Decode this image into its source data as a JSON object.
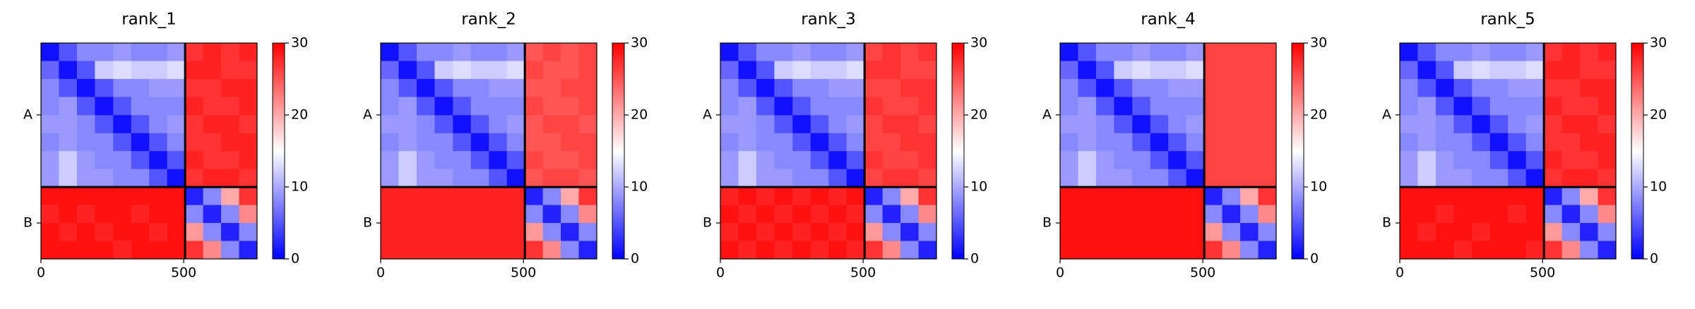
{
  "chart_data": [
    {
      "type": "heatmap",
      "title": "rank_1",
      "x_edges": [
        0,
        63,
        126,
        189,
        253,
        316,
        379,
        442,
        505,
        568,
        631,
        694,
        757
      ],
      "y_edges": [
        0,
        63,
        126,
        189,
        253,
        316,
        379,
        442,
        505,
        568,
        631,
        694,
        757
      ],
      "xlim": [
        0,
        757
      ],
      "ylim": [
        757,
        0
      ],
      "xticks": [
        0,
        500
      ],
      "yticks": [
        {
          "value": 252,
          "label": "A"
        },
        {
          "value": 631,
          "label": "B"
        }
      ],
      "chain_breaks": [
        505
      ],
      "clim": [
        0,
        30
      ],
      "cticks": [
        0,
        10,
        20,
        30
      ],
      "colormap": [
        "#0000ff",
        "#ffffff",
        "#ff0000"
      ],
      "z": [
        [
          1,
          5,
          8,
          8,
          9,
          8,
          8,
          9,
          27,
          28,
          27,
          28
        ],
        [
          6,
          1,
          5,
          12,
          13,
          12,
          12,
          13,
          28,
          28,
          27,
          27
        ],
        [
          8,
          5,
          1,
          5,
          8,
          8,
          9,
          9,
          27,
          27,
          28,
          28
        ],
        [
          8,
          9,
          5,
          1,
          5,
          8,
          8,
          8,
          28,
          27,
          27,
          28
        ],
        [
          9,
          9,
          8,
          5,
          1,
          5,
          8,
          9,
          27,
          28,
          28,
          27
        ],
        [
          8,
          9,
          8,
          8,
          5,
          1,
          5,
          8,
          27,
          27,
          28,
          28
        ],
        [
          9,
          12,
          9,
          8,
          8,
          5,
          1,
          5,
          28,
          27,
          27,
          28
        ],
        [
          9,
          12,
          9,
          9,
          8,
          8,
          5,
          1,
          27,
          28,
          28,
          27
        ],
        [
          29,
          29,
          29,
          29,
          29,
          29,
          29,
          29,
          2,
          8,
          20,
          27
        ],
        [
          28,
          29,
          28,
          29,
          29,
          28,
          29,
          29,
          8,
          2,
          8,
          22
        ],
        [
          29,
          28,
          29,
          28,
          29,
          29,
          28,
          29,
          21,
          8,
          2,
          8
        ],
        [
          29,
          29,
          29,
          29,
          28,
          29,
          29,
          29,
          27,
          22,
          8,
          2
        ]
      ]
    },
    {
      "type": "heatmap",
      "title": "rank_2",
      "x_edges": [
        0,
        63,
        126,
        189,
        253,
        316,
        379,
        442,
        505,
        568,
        631,
        694,
        757
      ],
      "y_edges": [
        0,
        63,
        126,
        189,
        253,
        316,
        379,
        442,
        505,
        568,
        631,
        694,
        757
      ],
      "xlim": [
        0,
        757
      ],
      "ylim": [
        757,
        0
      ],
      "xticks": [
        0,
        500
      ],
      "yticks": [
        {
          "value": 252,
          "label": "A"
        },
        {
          "value": 631,
          "label": "B"
        }
      ],
      "chain_breaks": [
        505
      ],
      "clim": [
        0,
        30
      ],
      "cticks": [
        0,
        10,
        20,
        30
      ],
      "colormap": [
        "#0000ff",
        "#ffffff",
        "#ff0000"
      ],
      "z": [
        [
          1,
          5,
          8,
          8,
          9,
          8,
          8,
          9,
          25,
          26,
          25,
          26
        ],
        [
          6,
          1,
          5,
          12,
          13,
          12,
          12,
          13,
          26,
          25,
          25,
          26
        ],
        [
          8,
          5,
          1,
          5,
          8,
          8,
          9,
          9,
          25,
          25,
          26,
          26
        ],
        [
          8,
          9,
          5,
          1,
          5,
          8,
          8,
          8,
          26,
          25,
          25,
          26
        ],
        [
          9,
          9,
          8,
          5,
          1,
          5,
          8,
          9,
          25,
          26,
          26,
          25
        ],
        [
          8,
          9,
          8,
          8,
          5,
          1,
          5,
          8,
          25,
          25,
          26,
          26
        ],
        [
          9,
          12,
          9,
          8,
          8,
          5,
          1,
          5,
          26,
          25,
          25,
          26
        ],
        [
          9,
          12,
          9,
          9,
          8,
          8,
          5,
          1,
          25,
          26,
          26,
          25
        ],
        [
          28,
          28,
          28,
          28,
          28,
          28,
          28,
          28,
          2,
          8,
          20,
          27
        ],
        [
          28,
          28,
          28,
          28,
          28,
          28,
          28,
          28,
          8,
          2,
          8,
          22
        ],
        [
          28,
          28,
          28,
          28,
          28,
          28,
          28,
          28,
          21,
          8,
          2,
          8
        ],
        [
          28,
          28,
          28,
          28,
          28,
          28,
          28,
          28,
          27,
          22,
          8,
          2
        ]
      ]
    },
    {
      "type": "heatmap",
      "title": "rank_3",
      "x_edges": [
        0,
        63,
        126,
        189,
        253,
        316,
        379,
        442,
        505,
        568,
        631,
        694,
        757
      ],
      "y_edges": [
        0,
        63,
        126,
        189,
        253,
        316,
        379,
        442,
        505,
        568,
        631,
        694,
        757
      ],
      "xlim": [
        0,
        757
      ],
      "ylim": [
        757,
        0
      ],
      "xticks": [
        0,
        500
      ],
      "yticks": [
        {
          "value": 252,
          "label": "A"
        },
        {
          "value": 631,
          "label": "B"
        }
      ],
      "chain_breaks": [
        505
      ],
      "clim": [
        0,
        30
      ],
      "cticks": [
        0,
        10,
        20,
        30
      ],
      "colormap": [
        "#0000ff",
        "#ffffff",
        "#ff0000"
      ],
      "z": [
        [
          1,
          5,
          8,
          8,
          9,
          8,
          8,
          9,
          26,
          27,
          26,
          27
        ],
        [
          6,
          1,
          5,
          12,
          13,
          12,
          12,
          13,
          27,
          27,
          26,
          26
        ],
        [
          8,
          5,
          1,
          5,
          8,
          8,
          9,
          9,
          26,
          26,
          27,
          27
        ],
        [
          8,
          9,
          5,
          1,
          5,
          8,
          8,
          8,
          27,
          26,
          26,
          27
        ],
        [
          9,
          9,
          8,
          5,
          1,
          5,
          8,
          9,
          26,
          27,
          27,
          26
        ],
        [
          8,
          9,
          8,
          8,
          5,
          1,
          5,
          8,
          26,
          26,
          27,
          27
        ],
        [
          9,
          12,
          9,
          8,
          8,
          5,
          1,
          5,
          27,
          26,
          26,
          27
        ],
        [
          9,
          12,
          9,
          9,
          8,
          8,
          5,
          1,
          26,
          27,
          27,
          26
        ],
        [
          28,
          29,
          28,
          29,
          28,
          29,
          28,
          29,
          2,
          8,
          20,
          27
        ],
        [
          29,
          28,
          29,
          28,
          29,
          28,
          29,
          28,
          8,
          2,
          8,
          22
        ],
        [
          28,
          29,
          28,
          29,
          28,
          29,
          28,
          29,
          21,
          8,
          2,
          8
        ],
        [
          29,
          28,
          29,
          28,
          29,
          28,
          29,
          28,
          27,
          22,
          8,
          2
        ]
      ]
    },
    {
      "type": "heatmap",
      "title": "rank_4",
      "x_edges": [
        0,
        63,
        126,
        189,
        253,
        316,
        379,
        442,
        505,
        568,
        631,
        694,
        757
      ],
      "y_edges": [
        0,
        63,
        126,
        189,
        253,
        316,
        379,
        442,
        505,
        568,
        631,
        694,
        757
      ],
      "xlim": [
        0,
        757
      ],
      "ylim": [
        757,
        0
      ],
      "xticks": [
        0,
        500
      ],
      "yticks": [
        {
          "value": 252,
          "label": "A"
        },
        {
          "value": 631,
          "label": "B"
        }
      ],
      "chain_breaks": [
        505
      ],
      "clim": [
        0,
        30
      ],
      "cticks": [
        0,
        10,
        20,
        30
      ],
      "colormap": [
        "#0000ff",
        "#ffffff",
        "#ff0000"
      ],
      "z": [
        [
          1,
          5,
          8,
          8,
          9,
          8,
          8,
          9,
          26,
          26,
          26,
          26
        ],
        [
          6,
          1,
          5,
          12,
          13,
          12,
          12,
          13,
          26,
          26,
          26,
          26
        ],
        [
          8,
          5,
          1,
          5,
          8,
          8,
          9,
          9,
          26,
          26,
          26,
          26
        ],
        [
          8,
          9,
          5,
          1,
          5,
          8,
          8,
          8,
          26,
          26,
          26,
          26
        ],
        [
          9,
          9,
          8,
          5,
          1,
          5,
          8,
          9,
          26,
          26,
          26,
          26
        ],
        [
          8,
          9,
          8,
          8,
          5,
          1,
          5,
          8,
          26,
          26,
          26,
          26
        ],
        [
          9,
          12,
          9,
          8,
          8,
          5,
          1,
          5,
          26,
          26,
          26,
          26
        ],
        [
          9,
          12,
          9,
          9,
          8,
          8,
          5,
          1,
          26,
          26,
          26,
          26
        ],
        [
          29,
          29,
          29,
          29,
          29,
          29,
          29,
          29,
          2,
          8,
          20,
          27
        ],
        [
          29,
          29,
          29,
          29,
          29,
          29,
          29,
          29,
          8,
          2,
          8,
          22
        ],
        [
          29,
          29,
          29,
          29,
          29,
          29,
          29,
          29,
          21,
          8,
          2,
          8
        ],
        [
          29,
          29,
          29,
          29,
          29,
          29,
          29,
          29,
          27,
          22,
          8,
          2
        ]
      ]
    },
    {
      "type": "heatmap",
      "title": "rank_5",
      "x_edges": [
        0,
        63,
        126,
        189,
        253,
        316,
        379,
        442,
        505,
        568,
        631,
        694,
        757
      ],
      "y_edges": [
        0,
        63,
        126,
        189,
        253,
        316,
        379,
        442,
        505,
        568,
        631,
        694,
        757
      ],
      "xlim": [
        0,
        757
      ],
      "ylim": [
        757,
        0
      ],
      "xticks": [
        0,
        500
      ],
      "yticks": [
        {
          "value": 252,
          "label": "A"
        },
        {
          "value": 631,
          "label": "B"
        }
      ],
      "chain_breaks": [
        505
      ],
      "clim": [
        0,
        30
      ],
      "cticks": [
        0,
        10,
        20,
        30
      ],
      "colormap": [
        "#0000ff",
        "#ffffff",
        "#ff0000"
      ],
      "z": [
        [
          1,
          5,
          8,
          8,
          9,
          8,
          8,
          9,
          27,
          28,
          27,
          28
        ],
        [
          6,
          1,
          5,
          12,
          13,
          12,
          12,
          13,
          28,
          28,
          27,
          27
        ],
        [
          8,
          5,
          1,
          5,
          8,
          8,
          9,
          9,
          27,
          27,
          28,
          28
        ],
        [
          8,
          9,
          5,
          1,
          5,
          8,
          8,
          8,
          28,
          27,
          27,
          28
        ],
        [
          9,
          9,
          8,
          5,
          1,
          5,
          8,
          9,
          27,
          28,
          28,
          27
        ],
        [
          8,
          9,
          8,
          8,
          5,
          1,
          5,
          8,
          27,
          27,
          28,
          28
        ],
        [
          9,
          12,
          9,
          8,
          8,
          5,
          1,
          5,
          28,
          27,
          27,
          28
        ],
        [
          9,
          12,
          9,
          9,
          8,
          8,
          5,
          1,
          27,
          28,
          28,
          27
        ],
        [
          29,
          29,
          29,
          29,
          29,
          29,
          29,
          29,
          2,
          8,
          20,
          27
        ],
        [
          29,
          29,
          28,
          29,
          29,
          29,
          28,
          29,
          8,
          2,
          8,
          22
        ],
        [
          29,
          28,
          29,
          29,
          28,
          29,
          29,
          29,
          21,
          8,
          2,
          8
        ],
        [
          29,
          29,
          29,
          28,
          29,
          29,
          29,
          28,
          27,
          22,
          8,
          2
        ]
      ]
    }
  ]
}
